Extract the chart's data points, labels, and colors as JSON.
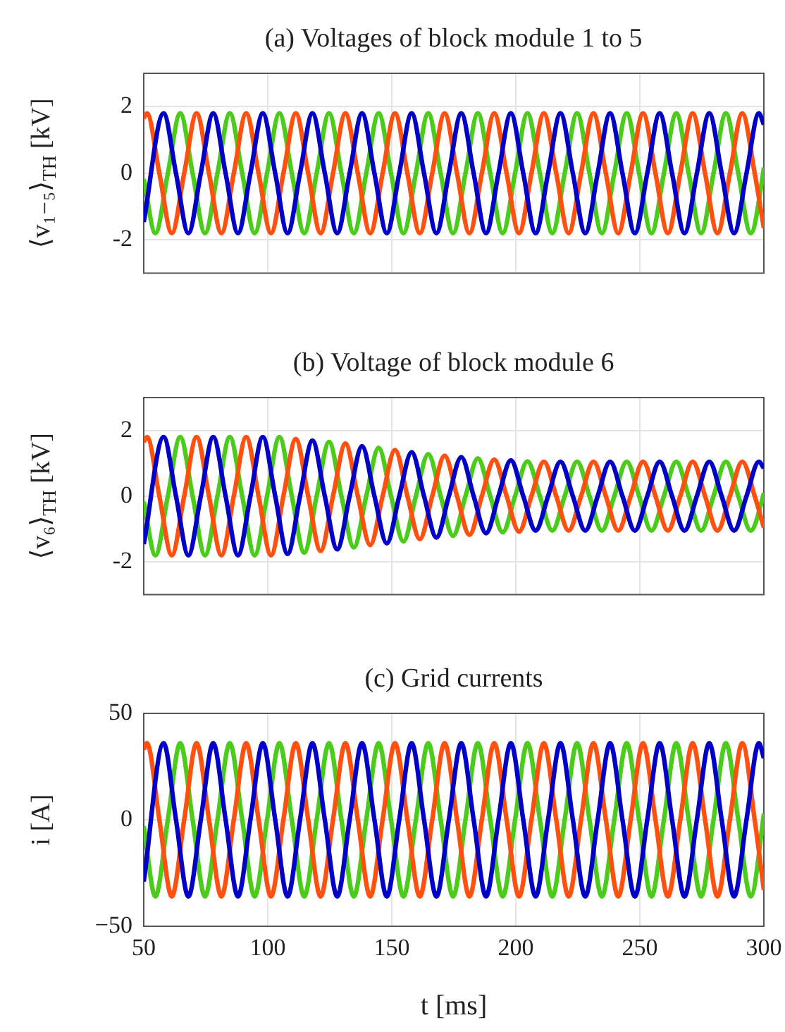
{
  "chart_data": [
    {
      "type": "line",
      "title": "(a) Voltages of block module 1 to 5",
      "ylabel": "⟨v₁₋₅⟩$_{TH}$ [kV]",
      "xlim": [
        50,
        300
      ],
      "xticks": [
        50,
        100,
        150,
        200,
        250,
        300
      ],
      "ylim": [
        -3,
        3
      ],
      "yticks": [
        -2,
        0,
        2
      ],
      "grid": true,
      "tick_labels": "y",
      "series": [
        {
          "color": "#0000c8",
          "x": [
            50,
            58,
            63,
            68,
            73,
            78,
            83,
            88,
            93,
            98,
            103,
            108,
            113,
            118,
            123,
            128,
            133,
            138,
            143,
            148,
            153,
            158,
            163,
            168,
            173,
            178,
            183,
            188,
            193,
            198,
            203,
            208,
            213,
            218,
            223,
            228,
            233,
            238,
            243,
            248,
            253,
            258,
            263,
            268,
            273,
            278,
            283,
            288,
            293,
            298,
            300
          ],
          "values": [
            -1.46,
            1.8,
            0,
            -1.8,
            0,
            1.8,
            0,
            -1.8,
            0,
            1.8,
            0,
            -1.8,
            0,
            1.8,
            0,
            -1.8,
            0,
            1.8,
            0,
            -1.8,
            0,
            1.8,
            0,
            -1.8,
            0,
            1.8,
            0,
            -1.8,
            0,
            1.8,
            0,
            -1.8,
            0,
            1.8,
            0,
            -1.8,
            0,
            1.8,
            0,
            -1.8,
            0,
            1.8,
            0,
            -1.8,
            0,
            1.8,
            0,
            -1.8,
            0,
            1.8,
            1.46
          ]
        },
        {
          "color": "#ff5010",
          "x": [
            50,
            51.3,
            56.3,
            61.3,
            66.3,
            71.3,
            76.3,
            81.3,
            86.3,
            91.3,
            96.3,
            101.3,
            106.3,
            111.3,
            116.3,
            121.3,
            126.3,
            131.3,
            136.3,
            141.3,
            146.3,
            151.3,
            156.3,
            161.3,
            166.3,
            171.3,
            176.3,
            181.3,
            186.3,
            191.3,
            196.3,
            201.3,
            206.3,
            211.3,
            216.3,
            221.3,
            226.3,
            231.3,
            236.3,
            241.3,
            246.3,
            251.3,
            256.3,
            261.3,
            266.3,
            271.3,
            276.3,
            281.3,
            286.3,
            291.3,
            296.3,
            300
          ],
          "values": [
            1.65,
            1.8,
            0,
            -1.8,
            0,
            1.8,
            0,
            -1.8,
            0,
            1.8,
            0,
            -1.8,
            0,
            1.8,
            0,
            -1.8,
            0,
            1.8,
            0,
            -1.8,
            0,
            1.8,
            0,
            -1.8,
            0,
            1.8,
            0,
            -1.8,
            0,
            1.8,
            0,
            -1.8,
            0,
            1.8,
            0,
            -1.8,
            0,
            1.8,
            0,
            -1.8,
            0,
            1.8,
            0,
            -1.8,
            0,
            1.8,
            0,
            -1.8,
            0,
            1.8,
            0,
            -1.65
          ]
        },
        {
          "color": "#4ccc1a",
          "x": [
            50,
            54.7,
            59.7,
            64.7,
            69.7,
            74.7,
            79.7,
            84.7,
            89.7,
            94.7,
            99.7,
            104.7,
            109.7,
            114.7,
            119.7,
            124.7,
            129.7,
            134.7,
            139.7,
            144.7,
            149.7,
            154.7,
            159.7,
            164.7,
            169.7,
            174.7,
            179.7,
            184.7,
            189.7,
            194.7,
            199.7,
            204.7,
            209.7,
            214.7,
            219.7,
            224.7,
            229.7,
            234.7,
            239.7,
            244.7,
            249.7,
            254.7,
            259.7,
            264.7,
            269.7,
            274.7,
            279.7,
            284.7,
            289.7,
            294.7,
            299.7,
            300
          ],
          "values": [
            -0.17,
            -1.8,
            0,
            1.8,
            0,
            -1.8,
            0,
            1.8,
            0,
            -1.8,
            0,
            1.8,
            0,
            -1.8,
            0,
            1.8,
            0,
            -1.8,
            0,
            1.8,
            0,
            -1.8,
            0,
            1.8,
            0,
            -1.8,
            0,
            1.8,
            0,
            -1.8,
            0,
            1.8,
            0,
            -1.8,
            0,
            1.8,
            0,
            -1.8,
            0,
            1.8,
            0,
            -1.8,
            0,
            1.8,
            0,
            -1.8,
            0,
            1.8,
            0,
            -1.8,
            0,
            0.17
          ]
        }
      ]
    },
    {
      "type": "line",
      "title": "(b) Voltage of block module 6",
      "ylabel": "⟨v₆⟩$_{TH}$ [kV]",
      "xlim": [
        50,
        300
      ],
      "xticks": [
        50,
        100,
        150,
        200,
        250,
        300
      ],
      "ylim": [
        -3,
        3
      ],
      "yticks": [
        -2,
        0,
        2
      ],
      "grid": true,
      "tick_labels": "y",
      "series": [
        {
          "color": "#0000c8",
          "x": [
            50,
            58,
            63,
            68,
            73,
            78,
            83,
            88,
            93,
            98,
            103,
            108,
            113,
            118,
            123,
            128,
            133,
            138,
            143,
            148,
            153,
            158,
            163,
            168,
            173,
            178,
            183,
            188,
            193,
            198,
            203,
            208,
            213,
            218,
            223,
            228,
            233,
            238,
            243,
            248,
            253,
            258,
            263,
            268,
            273,
            278,
            283,
            288,
            293,
            298,
            300
          ],
          "values": [
            -1.46,
            1.8,
            0,
            -1.8,
            0,
            1.8,
            0,
            -1.8,
            0,
            1.8,
            0,
            -1.76,
            0,
            1.69,
            0,
            -1.62,
            0,
            1.52,
            0,
            -1.44,
            0,
            1.34,
            0,
            -1.26,
            0,
            1.19,
            0,
            -1.13,
            0,
            1.09,
            0,
            -1.05,
            0,
            1.05,
            0,
            -1.05,
            0,
            1.05,
            0,
            -1.05,
            0,
            1.05,
            0,
            -1.05,
            0,
            1.05,
            0,
            -1.05,
            0,
            1.05,
            0.85
          ]
        },
        {
          "color": "#ff5010",
          "x": [
            50,
            51.3,
            56.3,
            61.3,
            66.3,
            71.3,
            76.3,
            81.3,
            86.3,
            91.3,
            96.3,
            101.3,
            106.3,
            111.3,
            116.3,
            121.3,
            126.3,
            131.3,
            136.3,
            141.3,
            146.3,
            151.3,
            156.3,
            161.3,
            166.3,
            171.3,
            176.3,
            181.3,
            186.3,
            191.3,
            196.3,
            201.3,
            206.3,
            211.3,
            216.3,
            221.3,
            226.3,
            231.3,
            236.3,
            241.3,
            246.3,
            251.3,
            256.3,
            261.3,
            266.3,
            271.3,
            276.3,
            281.3,
            286.3,
            291.3,
            296.3,
            300
          ],
          "values": [
            1.65,
            1.8,
            0,
            -1.8,
            0,
            1.8,
            0,
            -1.8,
            0,
            1.8,
            0,
            -1.8,
            0,
            1.74,
            0,
            -1.67,
            0,
            1.6,
            0,
            -1.49,
            0,
            1.41,
            0,
            -1.31,
            0,
            1.23,
            0,
            -1.18,
            0,
            1.11,
            0,
            -1.08,
            0,
            1.05,
            0,
            -1.05,
            0,
            1.05,
            0,
            -1.05,
            0,
            1.05,
            0,
            -1.05,
            0,
            1.05,
            0,
            -1.05,
            0,
            1.05,
            0,
            -0.96
          ]
        },
        {
          "color": "#4ccc1a",
          "x": [
            50,
            54.7,
            59.7,
            64.7,
            69.7,
            74.7,
            79.7,
            84.7,
            89.7,
            94.7,
            99.7,
            104.7,
            109.7,
            114.7,
            119.7,
            124.7,
            129.7,
            134.7,
            139.7,
            144.7,
            149.7,
            154.7,
            159.7,
            164.7,
            169.7,
            174.7,
            179.7,
            184.7,
            189.7,
            194.7,
            199.7,
            204.7,
            209.7,
            214.7,
            219.7,
            224.7,
            229.7,
            234.7,
            239.7,
            244.7,
            249.7,
            254.7,
            259.7,
            264.7,
            269.7,
            274.7,
            279.7,
            284.7,
            289.7,
            294.7,
            299.7,
            300
          ],
          "values": [
            -0.17,
            -1.8,
            0,
            1.8,
            0,
            -1.8,
            0,
            1.8,
            0,
            -1.8,
            0,
            1.8,
            0,
            -1.72,
            0,
            1.65,
            0,
            -1.56,
            0,
            1.47,
            0,
            -1.38,
            0,
            1.28,
            0,
            -1.21,
            0,
            1.15,
            0,
            -1.1,
            0,
            1.06,
            0,
            -1.05,
            0,
            1.05,
            0,
            -1.05,
            0,
            1.05,
            0,
            -1.05,
            0,
            1.05,
            0,
            -1.05,
            0,
            1.05,
            0,
            -1.05,
            0,
            0.1
          ]
        }
      ]
    },
    {
      "type": "line",
      "title": "(c) Grid currents",
      "xlabel": "t [ms]",
      "ylabel": "i [A]",
      "xlim": [
        50,
        300
      ],
      "xticks": [
        50,
        100,
        150,
        200,
        250,
        300
      ],
      "ylim": [
        -50,
        50
      ],
      "yticks": [
        {
          "value": -50,
          "label": "−50"
        },
        0,
        50
      ],
      "grid": true,
      "series": [
        {
          "color": "#0000c8",
          "x": [
            50,
            58,
            63,
            68,
            73,
            78,
            83,
            88,
            93,
            98,
            103,
            108,
            113,
            118,
            123,
            128,
            133,
            138,
            143,
            148,
            153,
            158,
            163,
            168,
            173,
            178,
            183,
            188,
            193,
            198,
            203,
            208,
            213,
            218,
            223,
            228,
            233,
            238,
            243,
            248,
            253,
            258,
            263,
            268,
            273,
            278,
            283,
            288,
            293,
            298,
            300
          ],
          "values": [
            -29,
            36,
            0,
            -36,
            0,
            36,
            0,
            -36,
            0,
            36,
            0,
            -36,
            0,
            36,
            0,
            -36,
            0,
            36,
            0,
            -36,
            0,
            36,
            0,
            -36,
            0,
            36,
            0,
            -36,
            0,
            36,
            0,
            -36,
            0,
            36,
            0,
            -36,
            0,
            36,
            0,
            -36,
            0,
            36,
            0,
            -36,
            0,
            36,
            0,
            -36,
            0,
            36,
            29
          ]
        },
        {
          "color": "#ff5010",
          "x": [
            50,
            51.3,
            56.3,
            61.3,
            66.3,
            71.3,
            76.3,
            81.3,
            86.3,
            91.3,
            96.3,
            101.3,
            106.3,
            111.3,
            116.3,
            121.3,
            126.3,
            131.3,
            136.3,
            141.3,
            146.3,
            151.3,
            156.3,
            161.3,
            166.3,
            171.3,
            176.3,
            181.3,
            186.3,
            191.3,
            196.3,
            201.3,
            206.3,
            211.3,
            216.3,
            221.3,
            226.3,
            231.3,
            236.3,
            241.3,
            246.3,
            251.3,
            256.3,
            261.3,
            266.3,
            271.3,
            276.3,
            281.3,
            286.3,
            291.3,
            296.3,
            300
          ],
          "values": [
            33,
            36,
            0,
            -36,
            0,
            36,
            0,
            -36,
            0,
            36,
            0,
            -36,
            0,
            36,
            0,
            -36,
            0,
            36,
            0,
            -36,
            0,
            36,
            0,
            -36,
            0,
            36,
            0,
            -36,
            0,
            36,
            0,
            -36,
            0,
            36,
            0,
            -36,
            0,
            36,
            0,
            -36,
            0,
            36,
            0,
            -36,
            0,
            36,
            0,
            -36,
            0,
            36,
            0,
            -33
          ]
        },
        {
          "color": "#4ccc1a",
          "x": [
            50,
            54.7,
            59.7,
            64.7,
            69.7,
            74.7,
            79.7,
            84.7,
            89.7,
            94.7,
            99.7,
            104.7,
            109.7,
            114.7,
            119.7,
            124.7,
            129.7,
            134.7,
            139.7,
            144.7,
            149.7,
            154.7,
            159.7,
            164.7,
            169.7,
            174.7,
            179.7,
            184.7,
            189.7,
            194.7,
            199.7,
            204.7,
            209.7,
            214.7,
            219.7,
            224.7,
            229.7,
            234.7,
            239.7,
            244.7,
            249.7,
            254.7,
            259.7,
            264.7,
            269.7,
            274.7,
            279.7,
            284.7,
            289.7,
            294.7,
            299.7,
            300
          ],
          "values": [
            -3,
            -36,
            0,
            36,
            0,
            -36,
            0,
            36,
            0,
            -36,
            0,
            36,
            0,
            -36,
            0,
            36,
            0,
            -36,
            0,
            36,
            0,
            -36,
            0,
            36,
            0,
            -36,
            0,
            36,
            0,
            -36,
            0,
            36,
            0,
            -36,
            0,
            36,
            0,
            -36,
            0,
            36,
            0,
            -36,
            0,
            36,
            0,
            -36,
            0,
            36,
            0,
            -36,
            0,
            3
          ]
        }
      ]
    }
  ]
}
